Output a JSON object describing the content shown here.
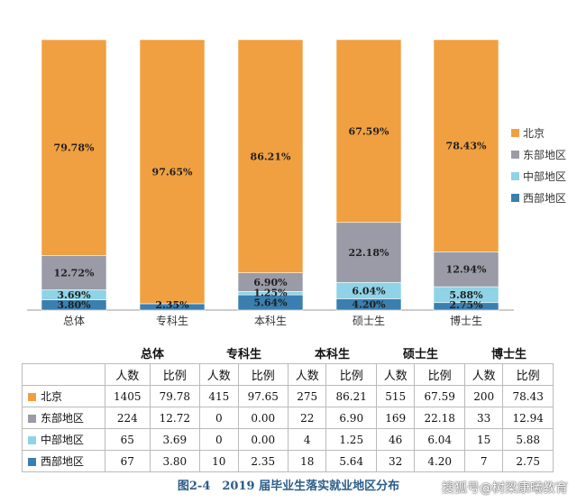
{
  "chart_data": {
    "type": "bar",
    "stacked": true,
    "normalized": true,
    "categories": [
      "总体",
      "专科生",
      "本科生",
      "硕士生",
      "博士生"
    ],
    "series": [
      {
        "name": "西部地区",
        "color": "#3a7fb0",
        "values": [
          3.8,
          2.35,
          5.64,
          4.2,
          2.75
        ],
        "labels": [
          "3.80%",
          "2.35%",
          "5.64%",
          "4.20%",
          "2.75%"
        ]
      },
      {
        "name": "中部地区",
        "color": "#8fd3e6",
        "values": [
          3.69,
          0.0,
          1.25,
          6.04,
          5.88
        ],
        "labels": [
          "3.69%",
          "",
          "1.25%",
          "6.04%",
          "5.88%"
        ]
      },
      {
        "name": "东部地区",
        "color": "#9b9ba7",
        "values": [
          12.72,
          0.0,
          6.9,
          22.18,
          12.94
        ],
        "labels": [
          "12.72%",
          "",
          "6.90%",
          "22.18%",
          "12.94%"
        ]
      },
      {
        "name": "北京",
        "color": "#f0a040",
        "values": [
          79.78,
          97.65,
          86.21,
          67.59,
          78.43
        ],
        "labels": [
          "79.78%",
          "97.65%",
          "86.21%",
          "67.59%",
          "78.43%"
        ]
      }
    ],
    "legend_order": [
      "北京",
      "东部地区",
      "中部地区",
      "西部地区"
    ],
    "legend_position": "right",
    "ylim": [
      0,
      100
    ],
    "grid": false,
    "title": "图2-4　2019 届毕业生落实就业地区分布"
  },
  "table": {
    "groups": [
      "总体",
      "专科生",
      "本科生",
      "硕士生",
      "博士生"
    ],
    "subheaders": [
      "人数",
      "比例"
    ],
    "rows": [
      {
        "label": "北京",
        "color": "#f0a040",
        "cells": [
          "1405",
          "79.78",
          "415",
          "97.65",
          "275",
          "86.21",
          "515",
          "67.59",
          "200",
          "78.43"
        ]
      },
      {
        "label": "东部地区",
        "color": "#9b9ba7",
        "cells": [
          "224",
          "12.72",
          "0",
          "0.00",
          "22",
          "6.90",
          "169",
          "22.18",
          "33",
          "12.94"
        ]
      },
      {
        "label": "中部地区",
        "color": "#8fd3e6",
        "cells": [
          "65",
          "3.69",
          "0",
          "0.00",
          "4",
          "1.25",
          "46",
          "6.04",
          "15",
          "5.88"
        ]
      },
      {
        "label": "西部地区",
        "color": "#3a7fb0",
        "cells": [
          "67",
          "3.80",
          "10",
          "2.35",
          "18",
          "5.64",
          "32",
          "4.20",
          "7",
          "2.75"
        ]
      }
    ]
  },
  "caption": "图2-4　2019 届毕业生落实就业地区分布",
  "watermark": "搜狐号@树梁康曦教育"
}
